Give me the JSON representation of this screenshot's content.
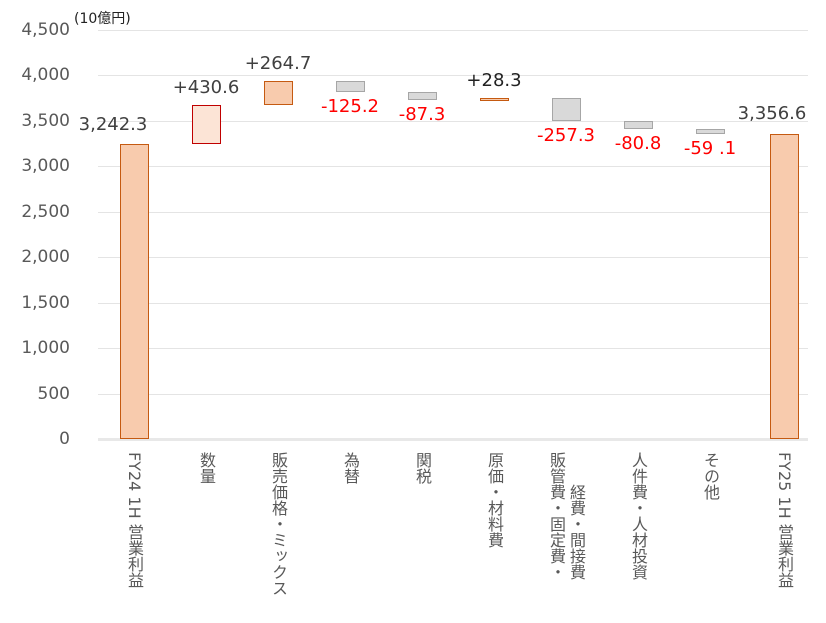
{
  "chart_data": {
    "type": "waterfall",
    "title": "",
    "unit_label": "(10億円)",
    "ylim": [
      0,
      4500
    ],
    "yticks": [
      0,
      500,
      1000,
      1500,
      2000,
      2500,
      3000,
      3500,
      4000,
      4500
    ],
    "ytick_labels": [
      "0",
      "500",
      "1,000",
      "1,500",
      "2,000",
      "2,500",
      "3,000",
      "3,500",
      "4,000",
      "4,500"
    ],
    "grid": true,
    "categories": [
      "FY24 1H 営業利益",
      "数量",
      "販売価格・ミックス",
      "為替",
      "関税",
      "原価・材料費",
      "販管費・固定費・経費・間接費",
      "人件費・人材投資",
      "その他",
      "FY25 1H 営業利益"
    ],
    "category_lines": [
      [
        "FY24 1H 営業利益"
      ],
      [
        "数量"
      ],
      [
        "販売価格・ミックス"
      ],
      [
        "為替"
      ],
      [
        "関税"
      ],
      [
        "原価・材料費"
      ],
      [
        "販管費・固定費・",
        "経費・間接費"
      ],
      [
        "人件費・人材投資"
      ],
      [
        "その他"
      ],
      [
        "FY25 1H 営業利益"
      ]
    ],
    "values": [
      3242.3,
      430.6,
      264.7,
      -125.2,
      -87.3,
      28.3,
      -257.3,
      -80.8,
      -59.1,
      3356.6
    ],
    "kinds": [
      "total",
      "delta",
      "delta",
      "delta",
      "delta",
      "delta",
      "delta",
      "delta",
      "delta",
      "total"
    ],
    "value_labels": [
      "3,242.3",
      "+430.6",
      "+264.7",
      "-125.2",
      "-87.3",
      "+28.3",
      "-257.3",
      "-80.8",
      "-59 .1",
      "3,356.6"
    ]
  },
  "colors": {
    "total_fill": "#f8cbad",
    "total_border": "#c55a11",
    "volume_fill": "#fce4d6",
    "volume_border": "#c00000",
    "positive_fill": "#f8cbad",
    "positive_border": "#c55a11",
    "negative_fill": "#d9d9d9",
    "negative_border": "#a6a6a6",
    "negative_label": "#ff0000",
    "label_dark": "#404040"
  }
}
